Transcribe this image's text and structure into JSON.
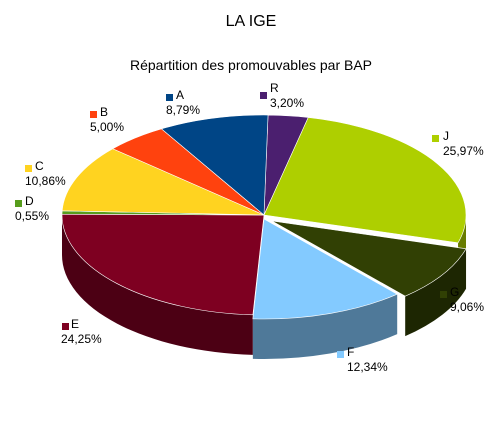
{
  "chart_data": {
    "type": "pie",
    "title": "LA IGE",
    "subtitle": "Répartition des promouvables par BAP",
    "slices": [
      {
        "name": "R",
        "value": 3.2,
        "label": "3,20%",
        "color": "#4b1f6f"
      },
      {
        "name": "J",
        "value": 25.97,
        "label": "25,97%",
        "color": "#aecf00"
      },
      {
        "name": "G",
        "value": 9.06,
        "label": "9,06%",
        "color": "#314004"
      },
      {
        "name": "F",
        "value": 12.34,
        "label": "12,34%",
        "color": "#83caff"
      },
      {
        "name": "E",
        "value": 24.25,
        "label": "24,25%",
        "color": "#7e0021"
      },
      {
        "name": "D",
        "value": 0.55,
        "label": "0,55%",
        "color": "#579d1c"
      },
      {
        "name": "C",
        "value": 10.86,
        "label": "10,86%",
        "color": "#ffd320"
      },
      {
        "name": "B",
        "value": 5.0,
        "label": "5,00%",
        "color": "#ff420e"
      },
      {
        "name": "A",
        "value": 8.79,
        "label": "8,79%",
        "color": "#004586"
      }
    ],
    "legend": "labels beside slices"
  }
}
